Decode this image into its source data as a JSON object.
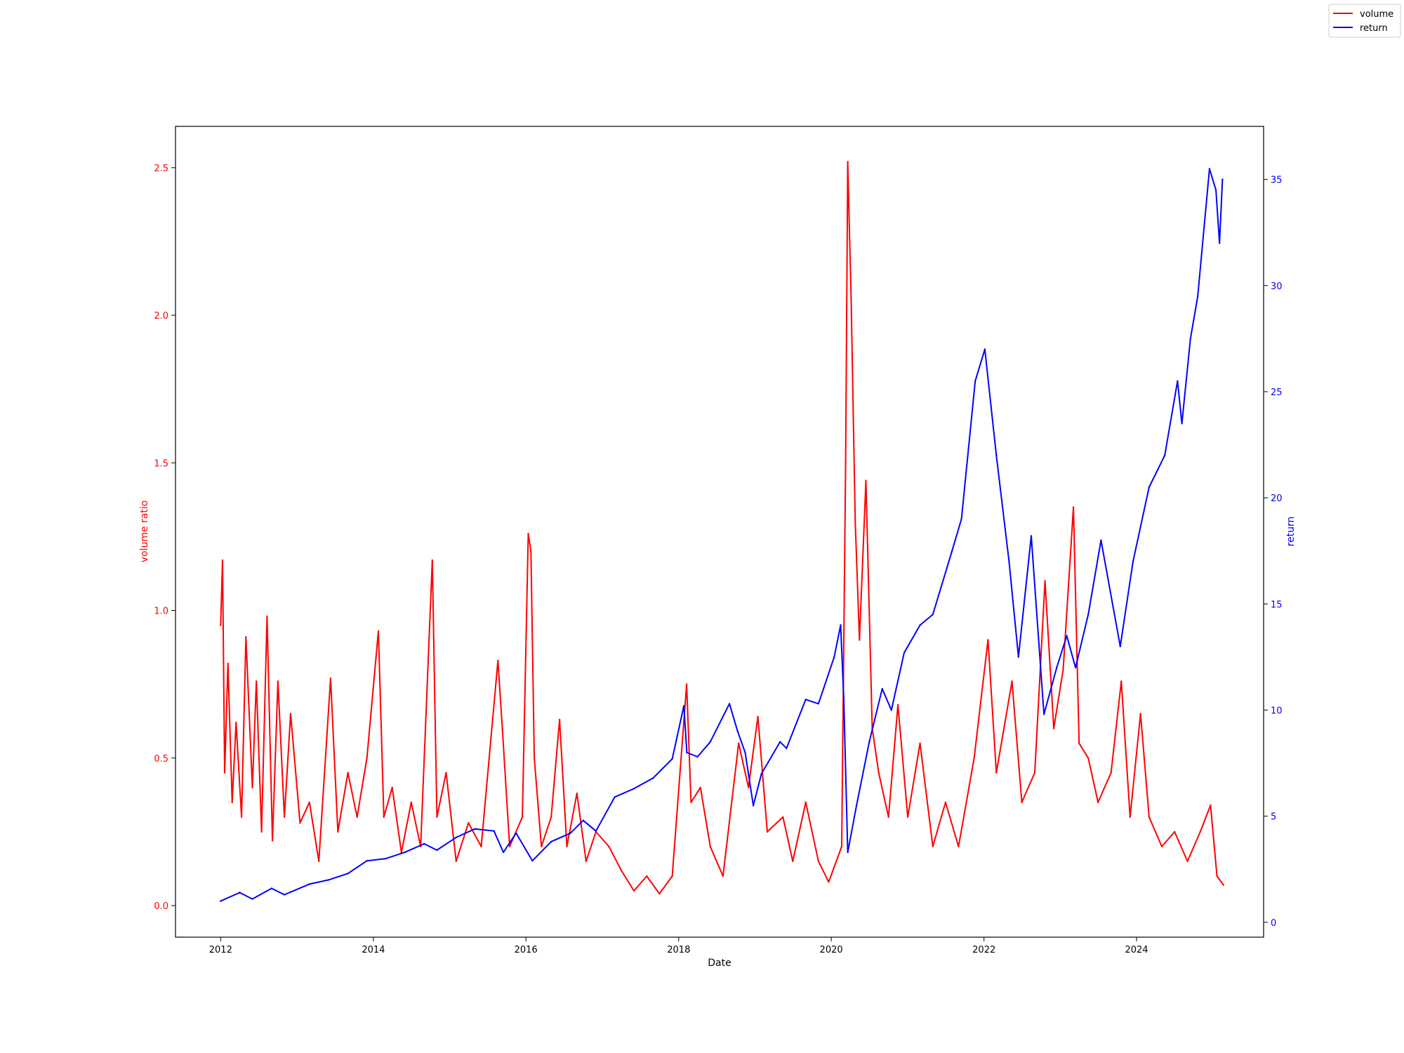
{
  "chart_data": {
    "type": "line",
    "xlabel": "Date",
    "ylabel_left": "volume ratio",
    "ylabel_right": "return",
    "x_range": [
      "2011-05-30",
      "2025-08-31"
    ],
    "x_ticks": [
      "2012",
      "2014",
      "2016",
      "2018",
      "2020",
      "2022",
      "2024"
    ],
    "ylim_left": [
      -0.107,
      2.64
    ],
    "yticks_left": [
      "0.0",
      "0.5",
      "1.0",
      "1.5",
      "2.0",
      "2.5"
    ],
    "ylim_right": [
      -0.7,
      37.5
    ],
    "yticks_right": [
      "0",
      "5",
      "10",
      "15",
      "20",
      "25",
      "30",
      "35"
    ],
    "grid": false,
    "legend_position": "top-right (figure)",
    "colors": {
      "volume": "#ff0000",
      "return": "#0000ff",
      "frame": "#000000"
    },
    "series": [
      {
        "name": "volume",
        "axis": "left",
        "color": "#ff0000",
        "points": [
          [
            "2012-01-01",
            0.95
          ],
          [
            "2012-01-10",
            1.17
          ],
          [
            "2012-01-20",
            0.45
          ],
          [
            "2012-02-05",
            0.82
          ],
          [
            "2012-02-25",
            0.35
          ],
          [
            "2012-03-15",
            0.62
          ],
          [
            "2012-04-10",
            0.3
          ],
          [
            "2012-05-01",
            0.91
          ],
          [
            "2012-06-01",
            0.4
          ],
          [
            "2012-06-20",
            0.76
          ],
          [
            "2012-07-15",
            0.25
          ],
          [
            "2012-08-10",
            0.98
          ],
          [
            "2012-09-05",
            0.22
          ],
          [
            "2012-10-01",
            0.76
          ],
          [
            "2012-11-01",
            0.3
          ],
          [
            "2012-12-01",
            0.65
          ],
          [
            "2013-01-15",
            0.28
          ],
          [
            "2013-03-01",
            0.35
          ],
          [
            "2013-04-15",
            0.15
          ],
          [
            "2013-06-10",
            0.77
          ],
          [
            "2013-07-15",
            0.25
          ],
          [
            "2013-09-01",
            0.45
          ],
          [
            "2013-10-15",
            0.3
          ],
          [
            "2013-12-01",
            0.5
          ],
          [
            "2014-01-25",
            0.93
          ],
          [
            "2014-02-20",
            0.3
          ],
          [
            "2014-04-01",
            0.4
          ],
          [
            "2014-05-15",
            0.18
          ],
          [
            "2014-07-01",
            0.35
          ],
          [
            "2014-08-15",
            0.2
          ],
          [
            "2014-10-10",
            1.17
          ],
          [
            "2014-11-01",
            0.3
          ],
          [
            "2014-12-15",
            0.45
          ],
          [
            "2015-02-01",
            0.15
          ],
          [
            "2015-04-01",
            0.28
          ],
          [
            "2015-06-01",
            0.2
          ],
          [
            "2015-08-20",
            0.83
          ],
          [
            "2015-09-10",
            0.6
          ],
          [
            "2015-10-15",
            0.2
          ],
          [
            "2015-12-15",
            0.3
          ],
          [
            "2016-01-12",
            1.26
          ],
          [
            "2016-01-25",
            1.2
          ],
          [
            "2016-02-10",
            0.5
          ],
          [
            "2016-03-15",
            0.2
          ],
          [
            "2016-05-01",
            0.3
          ],
          [
            "2016-06-10",
            0.63
          ],
          [
            "2016-07-15",
            0.2
          ],
          [
            "2016-09-01",
            0.38
          ],
          [
            "2016-10-15",
            0.15
          ],
          [
            "2016-12-01",
            0.25
          ],
          [
            "2017-02-01",
            0.2
          ],
          [
            "2017-04-01",
            0.12
          ],
          [
            "2017-06-01",
            0.05
          ],
          [
            "2017-08-01",
            0.1
          ],
          [
            "2017-10-01",
            0.04
          ],
          [
            "2017-12-01",
            0.1
          ],
          [
            "2018-02-08",
            0.75
          ],
          [
            "2018-03-01",
            0.35
          ],
          [
            "2018-04-15",
            0.4
          ],
          [
            "2018-06-01",
            0.2
          ],
          [
            "2018-08-01",
            0.1
          ],
          [
            "2018-10-15",
            0.55
          ],
          [
            "2018-12-01",
            0.4
          ],
          [
            "2019-01-15",
            0.64
          ],
          [
            "2019-03-01",
            0.25
          ],
          [
            "2019-05-15",
            0.3
          ],
          [
            "2019-07-01",
            0.15
          ],
          [
            "2019-09-01",
            0.35
          ],
          [
            "2019-11-01",
            0.15
          ],
          [
            "2019-12-20",
            0.08
          ],
          [
            "2020-02-20",
            0.2
          ],
          [
            "2020-03-10",
            1.5
          ],
          [
            "2020-03-20",
            2.52
          ],
          [
            "2020-04-05",
            2.06
          ],
          [
            "2020-04-25",
            1.3
          ],
          [
            "2020-05-15",
            0.9
          ],
          [
            "2020-06-15",
            1.44
          ],
          [
            "2020-07-15",
            0.6
          ],
          [
            "2020-08-15",
            0.45
          ],
          [
            "2020-10-01",
            0.3
          ],
          [
            "2020-11-15",
            0.68
          ],
          [
            "2021-01-01",
            0.3
          ],
          [
            "2021-03-01",
            0.55
          ],
          [
            "2021-05-01",
            0.2
          ],
          [
            "2021-07-01",
            0.35
          ],
          [
            "2021-09-01",
            0.2
          ],
          [
            "2021-11-15",
            0.5
          ],
          [
            "2022-01-20",
            0.9
          ],
          [
            "2022-03-01",
            0.45
          ],
          [
            "2022-05-15",
            0.76
          ],
          [
            "2022-07-01",
            0.35
          ],
          [
            "2022-09-01",
            0.45
          ],
          [
            "2022-10-20",
            1.1
          ],
          [
            "2022-12-01",
            0.6
          ],
          [
            "2023-01-15",
            0.8
          ],
          [
            "2023-03-05",
            1.35
          ],
          [
            "2023-04-01",
            0.55
          ],
          [
            "2023-05-15",
            0.5
          ],
          [
            "2023-07-01",
            0.35
          ],
          [
            "2023-09-01",
            0.45
          ],
          [
            "2023-10-20",
            0.76
          ],
          [
            "2023-12-01",
            0.3
          ],
          [
            "2024-01-20",
            0.65
          ],
          [
            "2024-03-01",
            0.3
          ],
          [
            "2024-05-01",
            0.2
          ],
          [
            "2024-07-01",
            0.25
          ],
          [
            "2024-09-01",
            0.15
          ],
          [
            "2024-11-01",
            0.25
          ],
          [
            "2024-12-20",
            0.34
          ],
          [
            "2025-01-20",
            0.1
          ],
          [
            "2025-02-20",
            0.07
          ]
        ]
      },
      {
        "name": "return",
        "axis": "right",
        "color": "#0000ff",
        "points": [
          [
            "2012-01-01",
            1.0
          ],
          [
            "2012-04-01",
            1.4
          ],
          [
            "2012-06-01",
            1.1
          ],
          [
            "2012-09-01",
            1.6
          ],
          [
            "2012-11-01",
            1.3
          ],
          [
            "2013-03-01",
            1.8
          ],
          [
            "2013-06-01",
            2.0
          ],
          [
            "2013-09-01",
            2.3
          ],
          [
            "2013-12-01",
            2.9
          ],
          [
            "2014-03-01",
            3.0
          ],
          [
            "2014-06-01",
            3.3
          ],
          [
            "2014-09-01",
            3.7
          ],
          [
            "2014-11-01",
            3.4
          ],
          [
            "2015-02-01",
            4.0
          ],
          [
            "2015-05-01",
            4.4
          ],
          [
            "2015-08-01",
            4.3
          ],
          [
            "2015-09-15",
            3.3
          ],
          [
            "2015-11-15",
            4.2
          ],
          [
            "2016-02-01",
            2.9
          ],
          [
            "2016-05-01",
            3.8
          ],
          [
            "2016-08-01",
            4.2
          ],
          [
            "2016-10-01",
            4.8
          ],
          [
            "2016-12-01",
            4.3
          ],
          [
            "2017-03-01",
            5.9
          ],
          [
            "2017-06-01",
            6.3
          ],
          [
            "2017-09-01",
            6.8
          ],
          [
            "2017-12-01",
            7.7
          ],
          [
            "2018-01-26",
            10.2
          ],
          [
            "2018-02-09",
            8.0
          ],
          [
            "2018-04-01",
            7.8
          ],
          [
            "2018-06-01",
            8.5
          ],
          [
            "2018-09-01",
            10.3
          ],
          [
            "2018-10-10",
            9.0
          ],
          [
            "2018-11-15",
            8.0
          ],
          [
            "2018-12-24",
            5.5
          ],
          [
            "2019-02-01",
            7.0
          ],
          [
            "2019-05-01",
            8.5
          ],
          [
            "2019-06-01",
            8.2
          ],
          [
            "2019-09-01",
            10.5
          ],
          [
            "2019-11-01",
            10.3
          ],
          [
            "2020-01-15",
            12.5
          ],
          [
            "2020-02-15",
            14.0
          ],
          [
            "2020-03-01",
            10.5
          ],
          [
            "2020-03-20",
            3.3
          ],
          [
            "2020-05-01",
            5.5
          ],
          [
            "2020-07-01",
            8.5
          ],
          [
            "2020-09-01",
            11.0
          ],
          [
            "2020-10-15",
            10.0
          ],
          [
            "2020-12-15",
            12.7
          ],
          [
            "2021-03-01",
            14.0
          ],
          [
            "2021-05-01",
            14.5
          ],
          [
            "2021-08-01",
            17.5
          ],
          [
            "2021-09-15",
            19.0
          ],
          [
            "2021-11-20",
            25.5
          ],
          [
            "2022-01-05",
            27.0
          ],
          [
            "2022-03-01",
            22.0
          ],
          [
            "2022-05-01",
            17.0
          ],
          [
            "2022-06-15",
            12.5
          ],
          [
            "2022-08-15",
            18.2
          ],
          [
            "2022-10-15",
            9.8
          ],
          [
            "2022-12-15",
            12.0
          ],
          [
            "2023-02-01",
            13.5
          ],
          [
            "2023-03-15",
            12.0
          ],
          [
            "2023-05-15",
            14.5
          ],
          [
            "2023-07-15",
            18.0
          ],
          [
            "2023-10-15",
            13.0
          ],
          [
            "2023-12-15",
            17.0
          ],
          [
            "2024-03-01",
            20.5
          ],
          [
            "2024-05-15",
            22.0
          ],
          [
            "2024-07-15",
            25.5
          ],
          [
            "2024-08-05",
            23.5
          ],
          [
            "2024-09-15",
            27.5
          ],
          [
            "2024-10-20",
            29.5
          ],
          [
            "2024-12-15",
            35.5
          ],
          [
            "2025-01-15",
            34.5
          ],
          [
            "2025-02-01",
            32.0
          ],
          [
            "2025-02-15",
            35.0
          ]
        ]
      }
    ]
  }
}
